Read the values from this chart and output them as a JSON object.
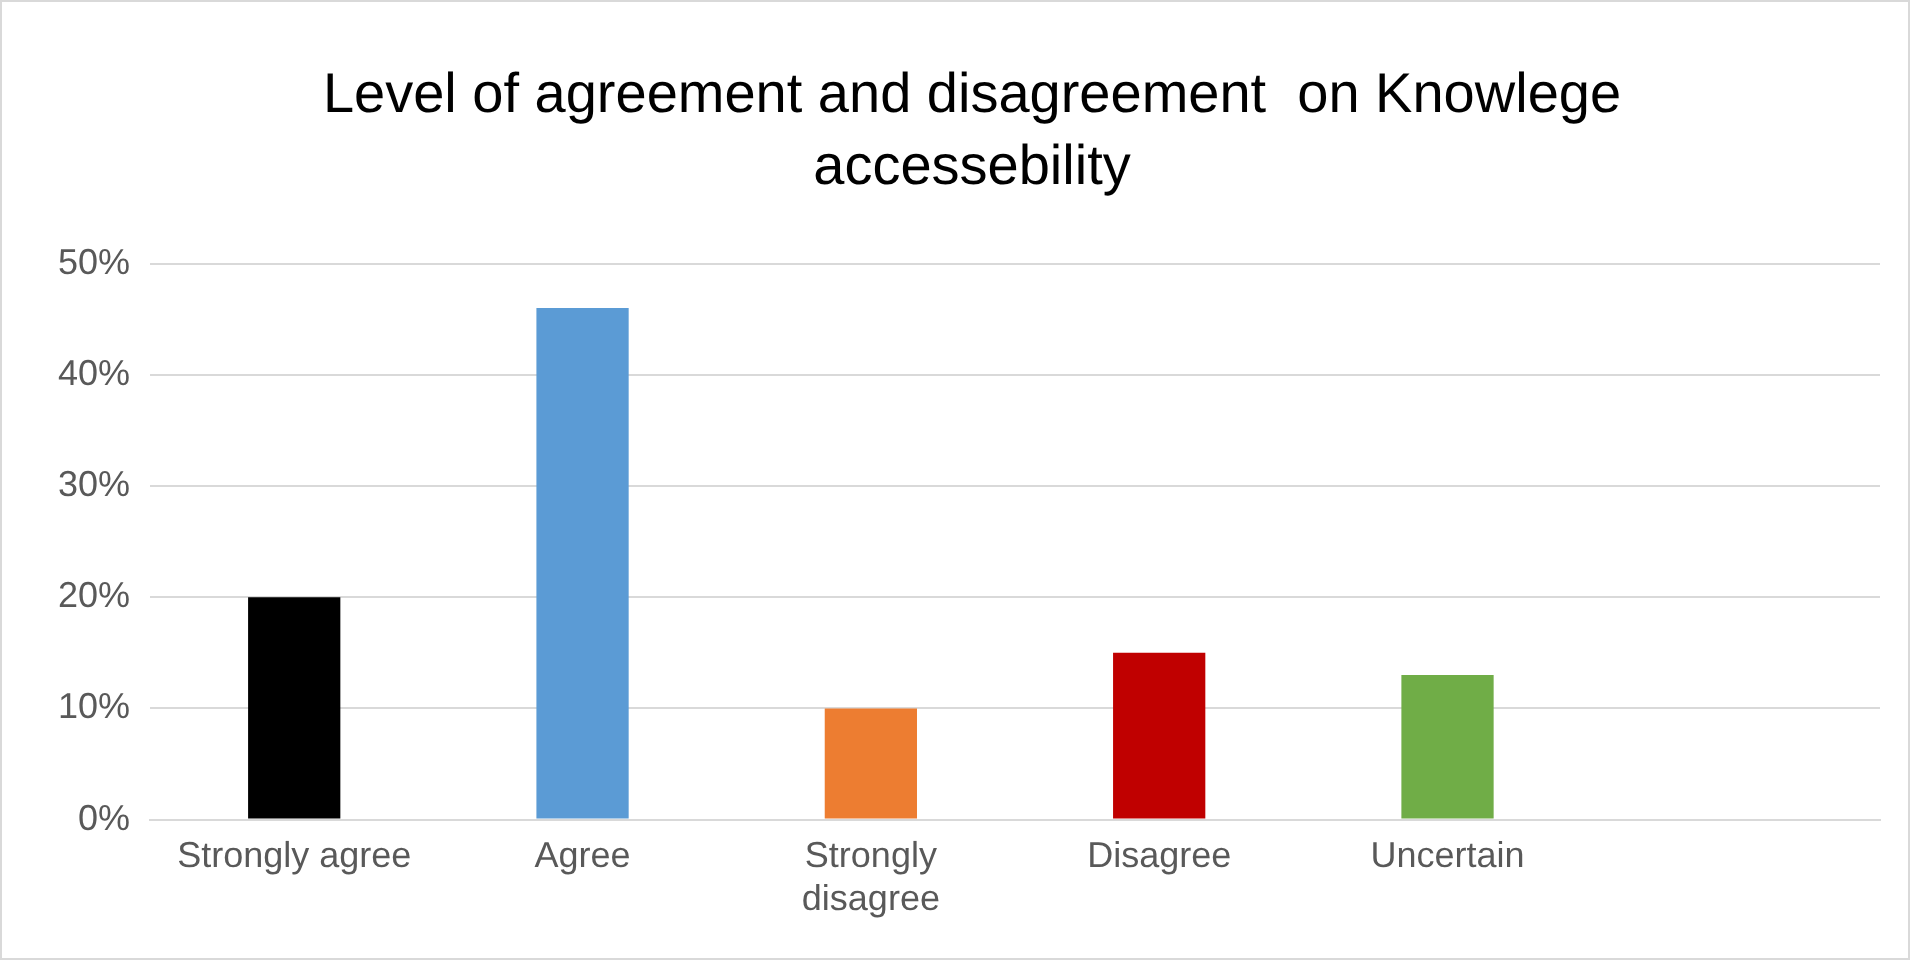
{
  "chart_data": {
    "type": "bar",
    "title": "Level of agreement and disagreement  on Knowlege accessebility",
    "categories": [
      "Strongly agree",
      "Agree",
      "Strongly disagree",
      "Disagree",
      "Uncertain",
      null
    ],
    "values": [
      20,
      46,
      10,
      15,
      13,
      null
    ],
    "colors": [
      "#000000",
      "#5b9bd5",
      "#ed7d31",
      "#c00000",
      "#70ad47",
      "#a5a5a5"
    ],
    "ylim": [
      0,
      50
    ],
    "yticks": [
      {
        "value": 0,
        "label": "0%"
      },
      {
        "value": 10,
        "label": "10%"
      },
      {
        "value": 20,
        "label": "20%"
      },
      {
        "value": 30,
        "label": "30%"
      },
      {
        "value": 40,
        "label": "40%"
      },
      {
        "value": 50,
        "label": "50%"
      }
    ],
    "grid": "y"
  }
}
